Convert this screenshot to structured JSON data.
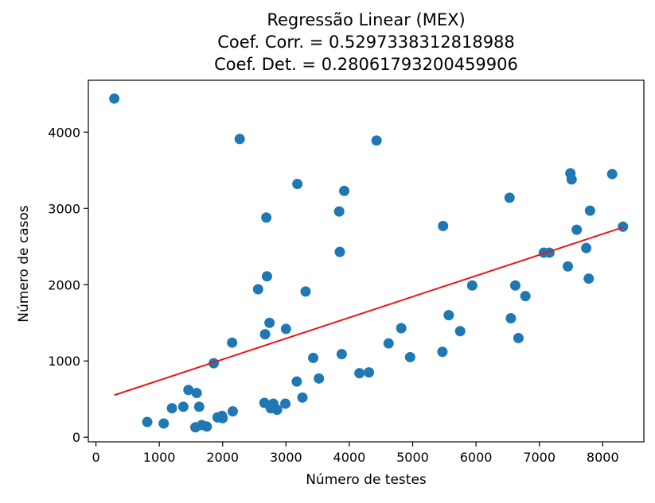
{
  "chart_data": {
    "type": "scatter",
    "title_lines": [
      "Regressão Linear (MEX)",
      "Coef. Corr. = 0.5297338312818988",
      "Coef. Det. = 0.28061793200459906"
    ],
    "xlabel": "Número de testes",
    "ylabel": "Número de casos",
    "xlim": [
      -120,
      8650
    ],
    "ylim": [
      -60,
      4680
    ],
    "xticks": [
      0,
      1000,
      2000,
      3000,
      4000,
      5000,
      6000,
      7000,
      8000
    ],
    "yticks": [
      0,
      1000,
      2000,
      3000,
      4000
    ],
    "colors": {
      "points": "#1f77b4",
      "line": "#e41a1c"
    },
    "points": [
      [
        290,
        4440
      ],
      [
        2270,
        3910
      ],
      [
        4430,
        3890
      ],
      [
        7490,
        3460
      ],
      [
        8150,
        3450
      ],
      [
        7510,
        3380
      ],
      [
        3180,
        3320
      ],
      [
        3920,
        3230
      ],
      [
        6530,
        3140
      ],
      [
        7800,
        2970
      ],
      [
        3840,
        2960
      ],
      [
        2690,
        2880
      ],
      [
        5480,
        2770
      ],
      [
        8320,
        2760
      ],
      [
        7590,
        2720
      ],
      [
        7740,
        2480
      ],
      [
        3850,
        2430
      ],
      [
        7070,
        2420
      ],
      [
        7160,
        2420
      ],
      [
        7450,
        2240
      ],
      [
        2700,
        2110
      ],
      [
        7780,
        2080
      ],
      [
        6620,
        1990
      ],
      [
        5940,
        1990
      ],
      [
        2560,
        1940
      ],
      [
        3310,
        1910
      ],
      [
        6780,
        1850
      ],
      [
        5570,
        1600
      ],
      [
        6550,
        1560
      ],
      [
        2740,
        1500
      ],
      [
        4820,
        1430
      ],
      [
        3000,
        1420
      ],
      [
        5750,
        1390
      ],
      [
        2670,
        1350
      ],
      [
        6670,
        1300
      ],
      [
        2150,
        1240
      ],
      [
        4620,
        1230
      ],
      [
        5470,
        1120
      ],
      [
        3880,
        1090
      ],
      [
        4960,
        1050
      ],
      [
        3430,
        1040
      ],
      [
        1860,
        970
      ],
      [
        4310,
        850
      ],
      [
        4160,
        840
      ],
      [
        3520,
        770
      ],
      [
        3170,
        730
      ],
      [
        1460,
        620
      ],
      [
        1590,
        580
      ],
      [
        3260,
        520
      ],
      [
        2660,
        450
      ],
      [
        2800,
        440
      ],
      [
        2990,
        440
      ],
      [
        1630,
        400
      ],
      [
        1380,
        400
      ],
      [
        1200,
        380
      ],
      [
        2760,
        380
      ],
      [
        2860,
        360
      ],
      [
        2160,
        340
      ],
      [
        1990,
        280
      ],
      [
        1920,
        260
      ],
      [
        2000,
        250
      ],
      [
        810,
        200
      ],
      [
        1070,
        180
      ],
      [
        1670,
        160
      ],
      [
        1750,
        140
      ],
      [
        1570,
        130
      ]
    ],
    "regression_line": {
      "x": [
        290,
        8320
      ],
      "y": [
        552,
        2752
      ]
    }
  }
}
